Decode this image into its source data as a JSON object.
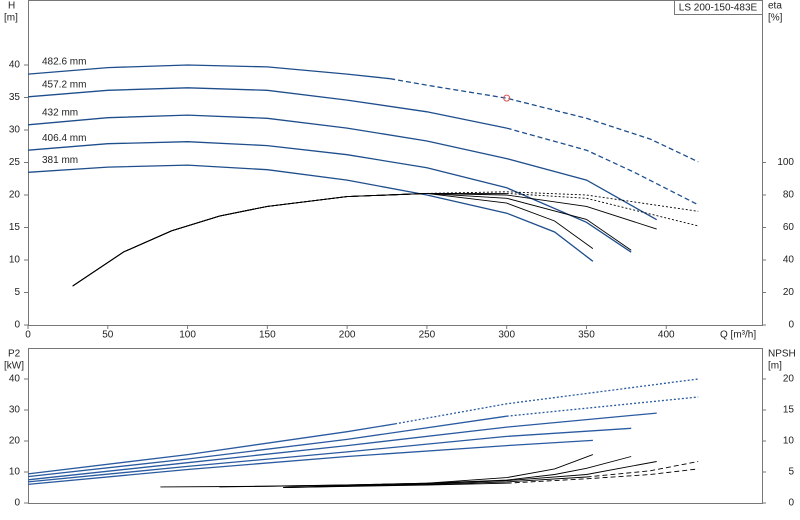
{
  "chart_data": [
    {
      "type": "line",
      "title": "LS 200-150-483E",
      "y_label": "H",
      "y_unit": "[m]",
      "y2_label": "eta",
      "y2_unit": "[%]",
      "x_label": "Q [m³/h]",
      "xlim": [
        0,
        460
      ],
      "xticks": [
        0,
        50,
        100,
        150,
        200,
        250,
        300,
        350,
        400
      ],
      "ylim": [
        0,
        50
      ],
      "yticks": [
        0,
        5,
        10,
        15,
        20,
        25,
        30,
        35,
        40
      ],
      "y2lim": [
        0,
        200
      ],
      "y2ticks": [
        0,
        20,
        40,
        60,
        80,
        100
      ],
      "duty_point": {
        "x": 300,
        "y": 34.9,
        "color": "#e05050"
      },
      "series": [
        {
          "name": "482.6 mm",
          "color": "#1f4e8c",
          "dash": "solid",
          "x": [
            0,
            50,
            100,
            150,
            200,
            227
          ],
          "values": [
            38.6,
            39.6,
            40.0,
            39.7,
            38.6,
            37.9
          ]
        },
        {
          "color": "#1f4e8c",
          "dash": "dashed",
          "x": [
            227,
            250,
            300,
            350,
            390,
            420
          ],
          "values": [
            37.9,
            36.9,
            34.9,
            31.8,
            28.6,
            25.1
          ]
        },
        {
          "name": "457.2 mm",
          "color": "#1f4e8c",
          "dash": "solid",
          "x": [
            0,
            50,
            100,
            150,
            200,
            250,
            300
          ],
          "values": [
            35.1,
            36.1,
            36.5,
            36.1,
            34.6,
            32.8,
            30.3
          ]
        },
        {
          "color": "#1f4e8c",
          "dash": "dashed",
          "x": [
            300,
            350,
            380,
            420
          ],
          "values": [
            30.3,
            26.9,
            23.5,
            18.5
          ]
        },
        {
          "name": "432 mm",
          "color": "#1f4e8c",
          "dash": "solid",
          "x": [
            0,
            50,
            100,
            150,
            200,
            250,
            300,
            350,
            394
          ],
          "values": [
            30.8,
            31.9,
            32.3,
            31.8,
            30.3,
            28.3,
            25.6,
            22.3,
            16.2
          ]
        },
        {
          "name": "406.4 mm",
          "color": "#1f4e8c",
          "dash": "solid",
          "x": [
            0,
            50,
            100,
            150,
            200,
            250,
            300,
            350,
            378
          ],
          "values": [
            26.9,
            27.9,
            28.2,
            27.6,
            26.2,
            24.2,
            21.1,
            15.8,
            11.2
          ]
        },
        {
          "name": "381 mm",
          "color": "#1f4e8c",
          "dash": "solid",
          "x": [
            0,
            50,
            100,
            150,
            200,
            250,
            300,
            330,
            354
          ],
          "values": [
            23.5,
            24.3,
            24.6,
            23.9,
            22.3,
            20.0,
            17.2,
            14.3,
            9.8
          ]
        },
        {
          "color": "#000000",
          "dash": "solid",
          "axis": "y2",
          "x": [
            28,
            60,
            90,
            120,
            150,
            200,
            250,
            300,
            330,
            354
          ],
          "values": [
            24,
            45,
            58,
            67,
            73,
            79,
            81,
            75,
            64,
            47
          ]
        },
        {
          "color": "#000000",
          "dash": "solid",
          "axis": "y2",
          "x": [
            28,
            60,
            90,
            120,
            150,
            200,
            250,
            300,
            350,
            378
          ],
          "values": [
            24,
            45,
            58,
            67,
            73,
            79,
            81,
            78,
            65,
            46
          ]
        },
        {
          "color": "#000000",
          "dash": "solid",
          "axis": "y2",
          "x": [
            28,
            60,
            90,
            120,
            150,
            200,
            250,
            300,
            350,
            394
          ],
          "values": [
            24,
            45,
            58,
            67,
            73,
            79,
            81,
            80,
            73,
            59
          ]
        },
        {
          "color": "#000000",
          "dash": "solid",
          "axis": "y2",
          "x": [
            28,
            60,
            90,
            120,
            150,
            200,
            250,
            300
          ],
          "values": [
            24,
            45,
            58,
            67,
            73,
            79,
            81,
            81
          ]
        },
        {
          "color": "#000000",
          "dash": "dotted",
          "axis": "y2",
          "x": [
            300,
            350,
            420
          ],
          "values": [
            81,
            78,
            61
          ]
        },
        {
          "color": "#000000",
          "dash": "solid",
          "axis": "y2",
          "x": [
            28,
            60,
            90,
            120,
            150,
            200,
            250
          ],
          "values": [
            24,
            45,
            58,
            67,
            73,
            79,
            81
          ]
        },
        {
          "color": "#000000",
          "dash": "dotted",
          "axis": "y2",
          "x": [
            250,
            300,
            350,
            420
          ],
          "values": [
            81,
            82,
            80,
            70
          ]
        }
      ]
    },
    {
      "type": "line",
      "y_label": "P2",
      "y_unit": "[kW]",
      "y2_label": "NPSH",
      "y2_unit": "[m]",
      "xlim": [
        0,
        460
      ],
      "ylim": [
        0,
        50
      ],
      "yticks": [
        0,
        10,
        20,
        30,
        40
      ],
      "y2lim": [
        0,
        25
      ],
      "y2ticks": [
        0,
        5,
        10,
        15,
        20
      ],
      "series": [
        {
          "color": "#2a5aa0",
          "dash": "solid",
          "x": [
            0,
            100,
            200,
            230
          ],
          "values": [
            9.4,
            15.6,
            23,
            25.5
          ]
        },
        {
          "color": "#2a5aa0",
          "dash": "dotted",
          "x": [
            230,
            300,
            420
          ],
          "values": [
            25.5,
            32,
            40
          ]
        },
        {
          "color": "#2a5aa0",
          "dash": "solid",
          "x": [
            0,
            100,
            200,
            300
          ],
          "values": [
            8.5,
            14.2,
            20.5,
            28
          ]
        },
        {
          "color": "#2a5aa0",
          "dash": "dotted",
          "x": [
            300,
            420
          ],
          "values": [
            28,
            34.2
          ]
        },
        {
          "color": "#2a5aa0",
          "dash": "solid",
          "x": [
            0,
            100,
            200,
            300,
            394
          ],
          "values": [
            7.5,
            13,
            18.5,
            24.5,
            29
          ]
        },
        {
          "color": "#2a5aa0",
          "dash": "solid",
          "x": [
            0,
            100,
            200,
            300,
            378
          ],
          "values": [
            6.8,
            11.8,
            16.5,
            21.5,
            24.1
          ]
        },
        {
          "color": "#2a5aa0",
          "dash": "solid",
          "x": [
            0,
            100,
            200,
            300,
            354
          ],
          "values": [
            6,
            10.8,
            15,
            18.5,
            20.2
          ]
        },
        {
          "color": "#000000",
          "dash": "solid",
          "axis": "y2",
          "x": [
            83,
            150,
            200,
            250,
            300,
            330,
            354
          ],
          "values": [
            2.6,
            2.7,
            2.9,
            3.2,
            4.1,
            5.5,
            7.8
          ]
        },
        {
          "color": "#000000",
          "dash": "solid",
          "axis": "y2",
          "x": [
            120,
            200,
            250,
            300,
            330,
            350,
            378
          ],
          "values": [
            2.6,
            2.9,
            3.2,
            3.7,
            4.6,
            5.6,
            7.5
          ]
        },
        {
          "color": "#000000",
          "dash": "solid",
          "axis": "y2",
          "x": [
            160,
            200,
            250,
            300,
            350,
            394
          ],
          "values": [
            2.5,
            2.8,
            3.1,
            3.6,
            4.6,
            6.7
          ]
        },
        {
          "color": "#000000",
          "dash": "solid",
          "axis": "y2",
          "x": [
            160,
            250,
            300,
            350
          ],
          "values": [
            2.5,
            3.0,
            3.4,
            4.2
          ]
        },
        {
          "color": "#000000",
          "dash": "dashed",
          "axis": "y2",
          "x": [
            350,
            390,
            420
          ],
          "values": [
            4.2,
            5.2,
            6.7
          ]
        },
        {
          "color": "#000000",
          "dash": "solid",
          "axis": "y2",
          "x": [
            160,
            250,
            300
          ],
          "values": [
            2.5,
            2.9,
            3.2
          ]
        },
        {
          "color": "#000000",
          "dash": "dashed",
          "axis": "y2",
          "x": [
            300,
            350,
            390,
            420
          ],
          "values": [
            3.2,
            3.9,
            4.6,
            5.5
          ]
        }
      ]
    }
  ]
}
